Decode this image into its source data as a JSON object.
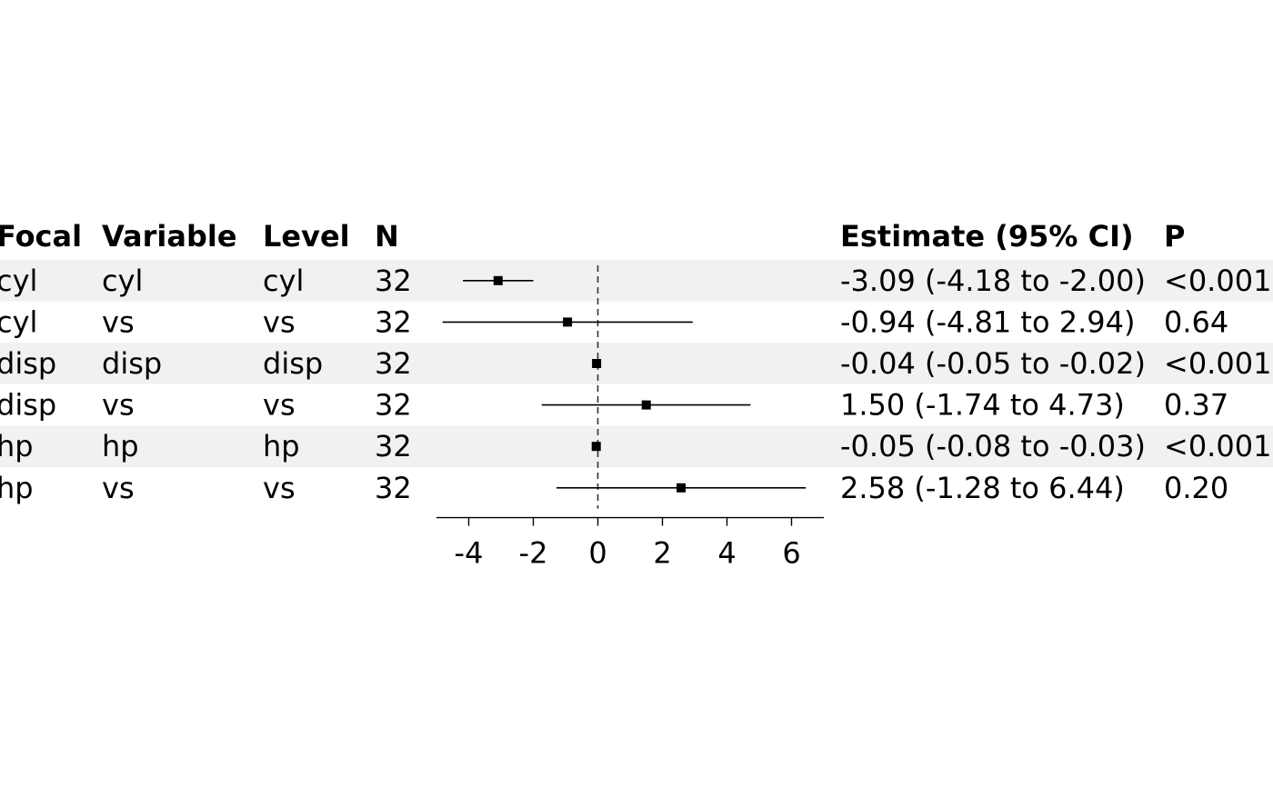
{
  "chart_data": {
    "type": "forest",
    "columns": {
      "focal": "Focal",
      "variable": "Variable",
      "level": "Level",
      "n": "N",
      "estimate": "Estimate (95% CI)",
      "p": "P"
    },
    "rows": [
      {
        "focal": "cyl",
        "variable": "cyl",
        "level": "cyl",
        "n": "32",
        "estimate": -3.09,
        "lower": -4.18,
        "upper": -2.0,
        "estimate_text": "-3.09 (-4.18 to -2.00)",
        "p": "<0.001"
      },
      {
        "focal": "cyl",
        "variable": "vs",
        "level": "vs",
        "n": "32",
        "estimate": -0.94,
        "lower": -4.81,
        "upper": 2.94,
        "estimate_text": "-0.94 (-4.81 to 2.94)",
        "p": "0.64"
      },
      {
        "focal": "disp",
        "variable": "disp",
        "level": "disp",
        "n": "32",
        "estimate": -0.04,
        "lower": -0.05,
        "upper": -0.02,
        "estimate_text": "-0.04 (-0.05 to -0.02)",
        "p": "<0.001"
      },
      {
        "focal": "disp",
        "variable": "vs",
        "level": "vs",
        "n": "32",
        "estimate": 1.5,
        "lower": -1.74,
        "upper": 4.73,
        "estimate_text": "1.50 (-1.74 to 4.73)",
        "p": "0.37"
      },
      {
        "focal": "hp",
        "variable": "hp",
        "level": "hp",
        "n": "32",
        "estimate": -0.05,
        "lower": -0.08,
        "upper": -0.03,
        "estimate_text": "-0.05 (-0.08 to -0.03)",
        "p": "<0.001"
      },
      {
        "focal": "hp",
        "variable": "vs",
        "level": "vs",
        "n": "32",
        "estimate": 2.58,
        "lower": -1.28,
        "upper": 6.44,
        "estimate_text": "2.58 (-1.28 to 6.44)",
        "p": "0.20"
      }
    ],
    "x_axis": {
      "ticks": [
        -4,
        -2,
        0,
        2,
        4,
        6
      ],
      "tick_labels": [
        "-4",
        "-2",
        "0",
        "2",
        "4",
        "6"
      ],
      "xlim": [
        -5,
        7
      ],
      "reference_line": 0
    },
    "colors": {
      "stripe": "#eff2f1",
      "ink": "#000000",
      "reference": "#333333"
    }
  }
}
